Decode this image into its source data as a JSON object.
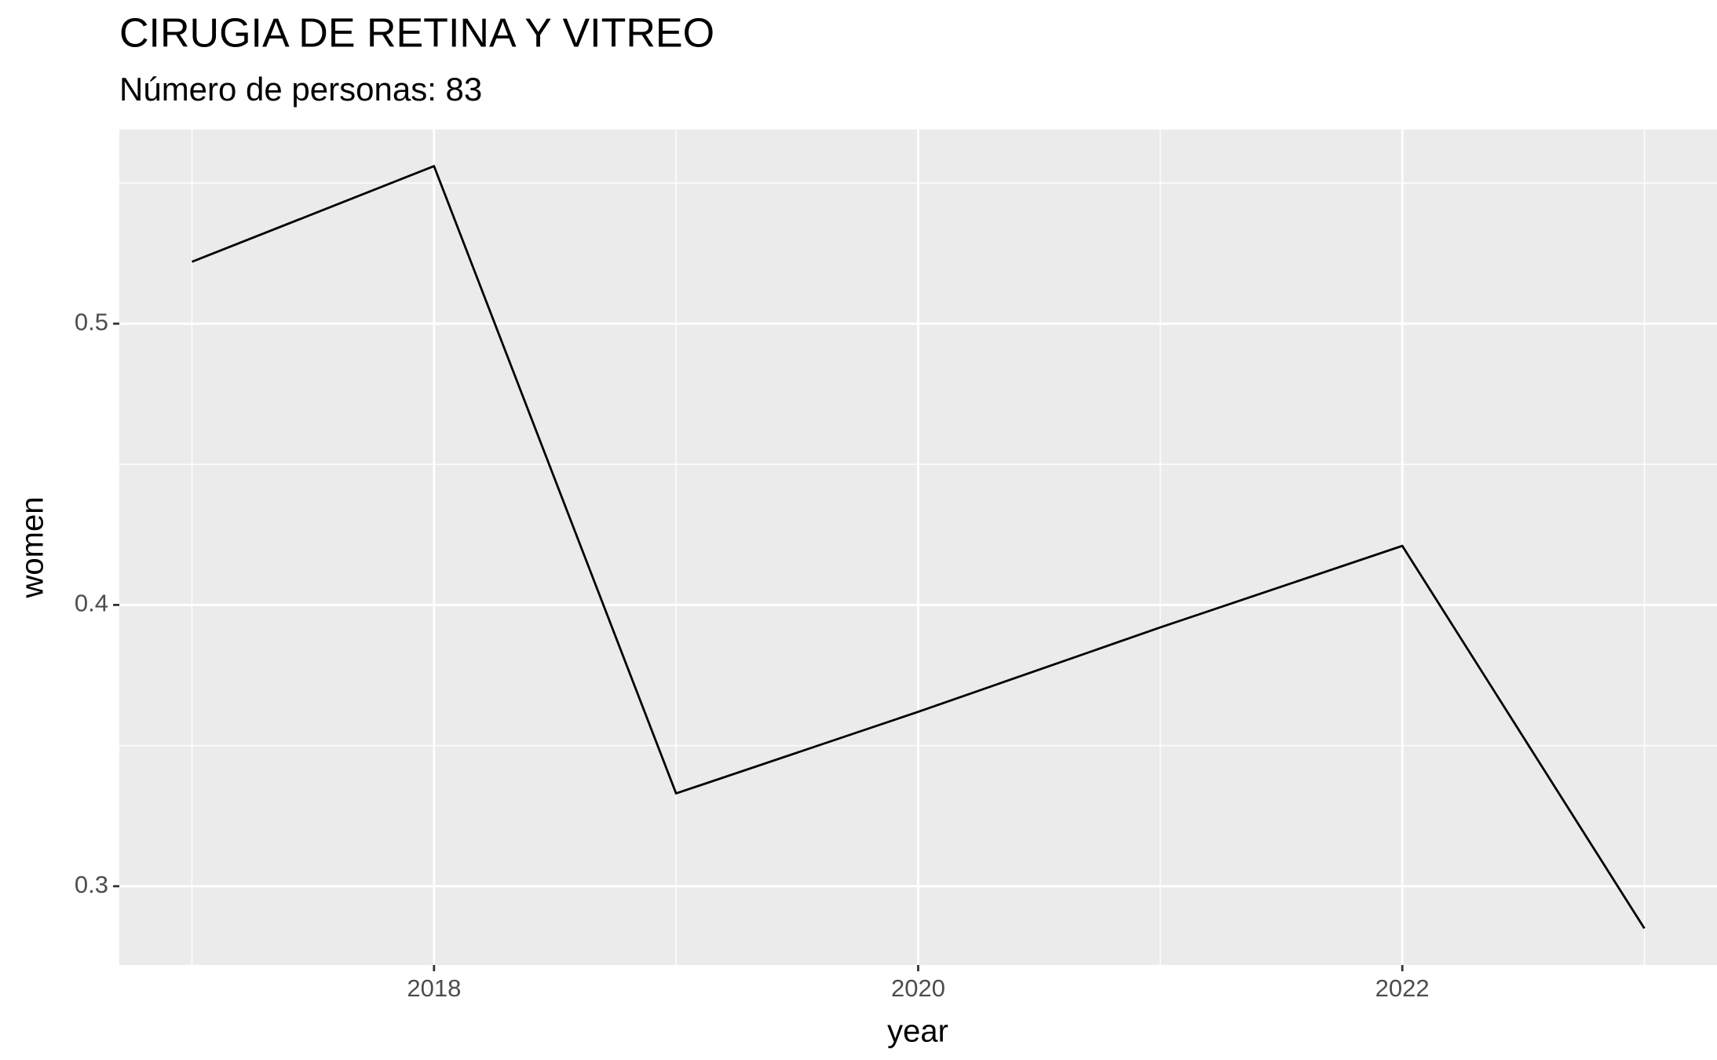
{
  "chart_data": {
    "type": "line",
    "title": "CIRUGIA DE RETINA Y VITREO",
    "subtitle": "Número de personas: 83",
    "x_label": "year",
    "y_label": "women",
    "x": [
      2017,
      2018,
      2019,
      2020,
      2021,
      2022,
      2023
    ],
    "series": [
      {
        "name": "women",
        "color": "#000000",
        "values": [
          0.522,
          0.556,
          0.333,
          0.362,
          0.392,
          0.421,
          0.285
        ]
      }
    ],
    "xlim": [
      2016.7,
      2023.3
    ],
    "xticks": [
      2018,
      2020,
      2022
    ],
    "ylim": [
      0.272,
      0.569
    ],
    "yticks": [
      0.3,
      0.4,
      0.5
    ],
    "grid": true
  }
}
